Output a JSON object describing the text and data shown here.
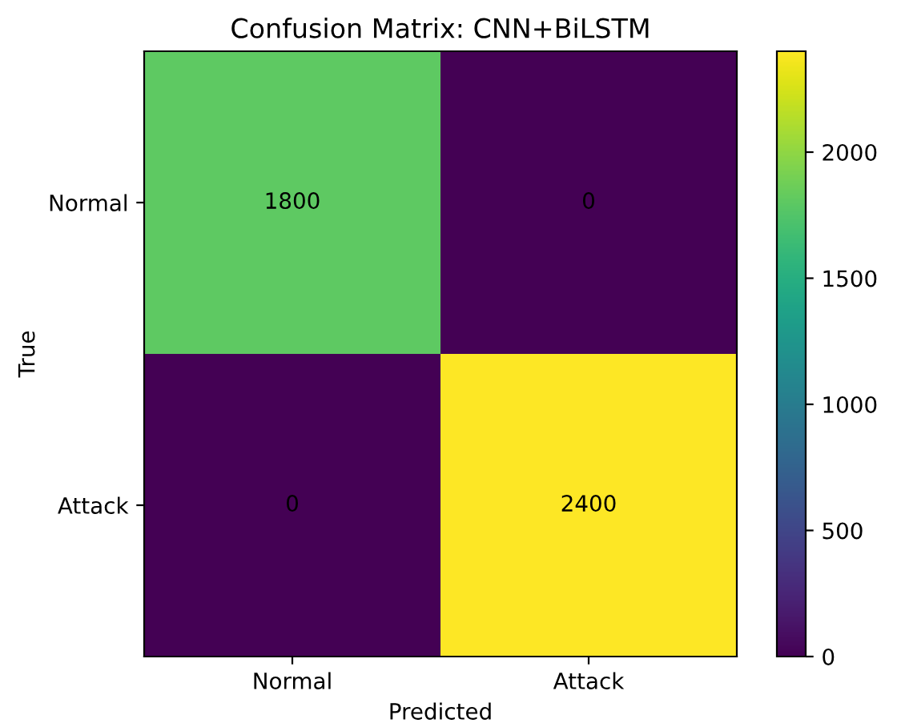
{
  "chart_data": {
    "type": "heatmap",
    "title": "Confusion Matrix: CNN+BiLSTM",
    "xlabel": "Predicted",
    "ylabel": "True",
    "categories": [
      "Normal",
      "Attack"
    ],
    "y_categories": [
      "Normal",
      "Attack"
    ],
    "cells": [
      [
        1800,
        0
      ],
      [
        0,
        2400
      ]
    ],
    "clim": [
      0,
      2400
    ],
    "cticks": [
      0,
      500,
      1000,
      1500,
      2000
    ],
    "data_labels": true,
    "grid": false
  }
}
